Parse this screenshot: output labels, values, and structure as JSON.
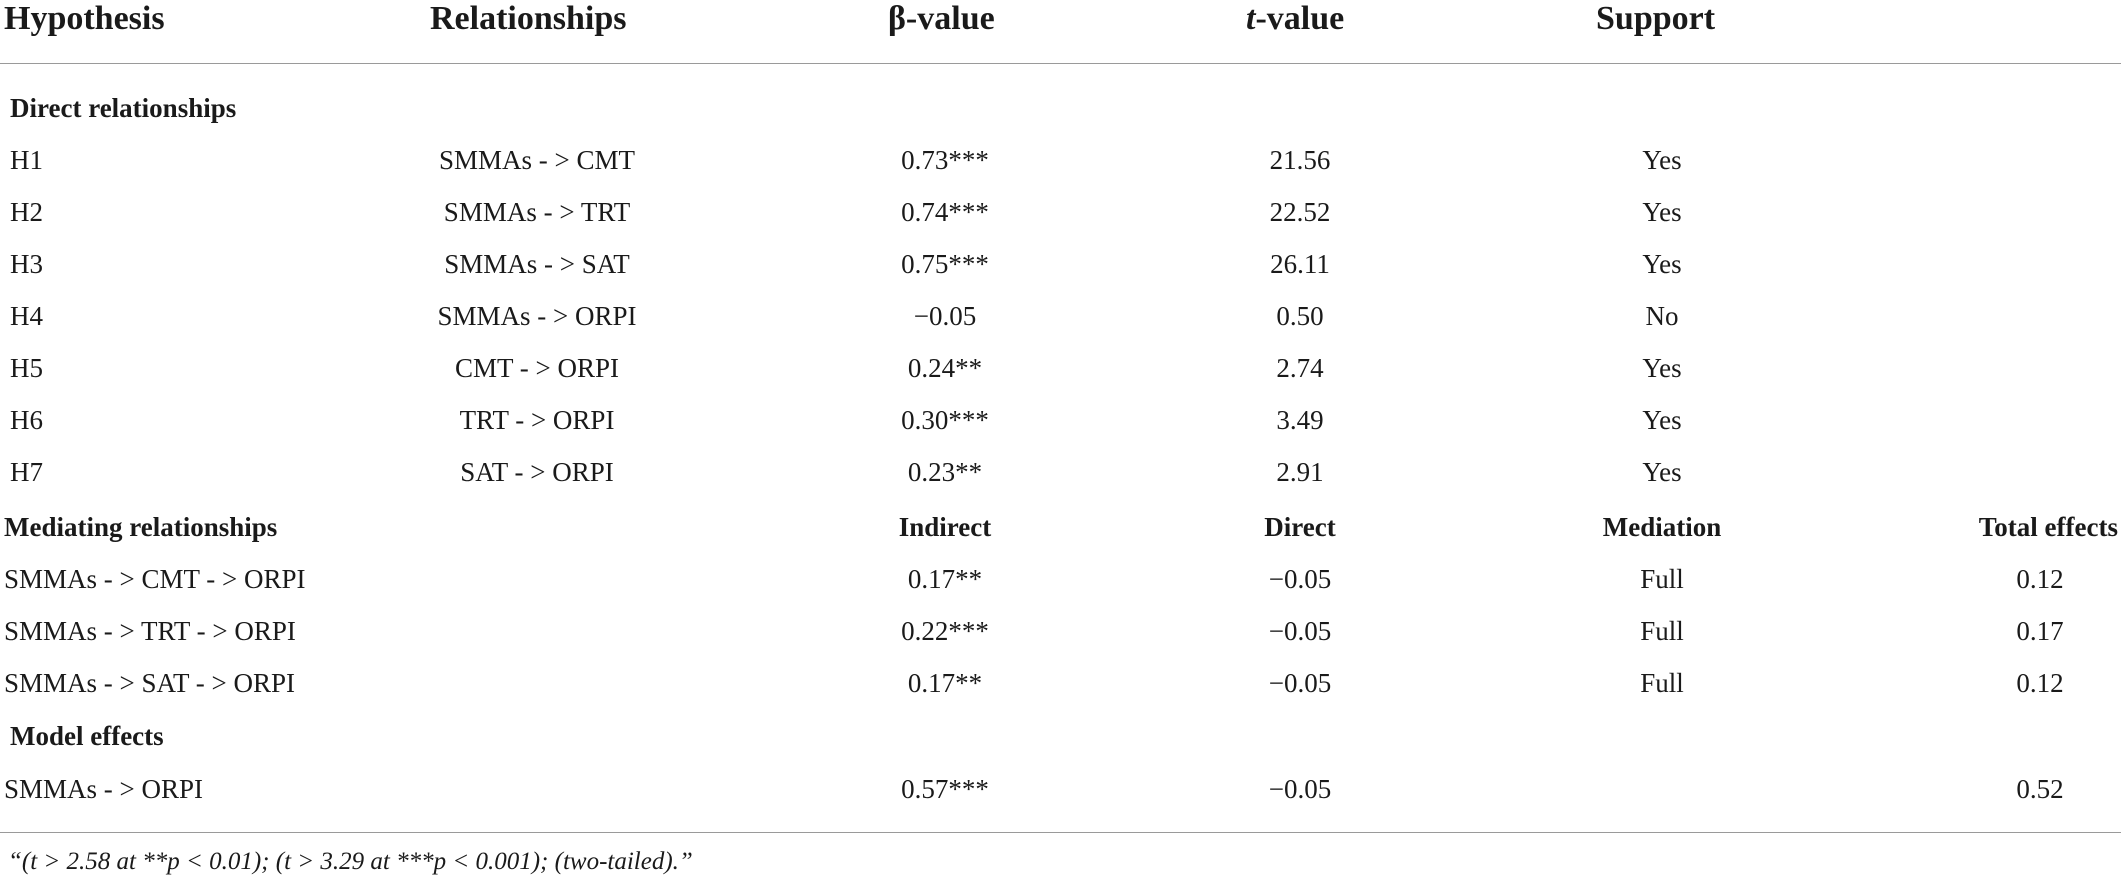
{
  "headers": {
    "hypothesis": "Hypothesis",
    "relationships": "Relationships",
    "beta_symbol": "β",
    "beta_suffix": "-value",
    "t_symbol": "t",
    "t_suffix": "-value",
    "support": "Support"
  },
  "direct": {
    "title": "Direct relationships",
    "rows": [
      {
        "hyp": "H1",
        "rel": "SMMAs - > CMT",
        "beta": "0.73***",
        "t": "21.56",
        "support": "Yes"
      },
      {
        "hyp": "H2",
        "rel": "SMMAs - > TRT",
        "beta": "0.74***",
        "t": "22.52",
        "support": "Yes"
      },
      {
        "hyp": "H3",
        "rel": "SMMAs - > SAT",
        "beta": "0.75***",
        "t": "26.11",
        "support": "Yes"
      },
      {
        "hyp": "H4",
        "rel": "SMMAs - > ORPI",
        "beta": "−0.05",
        "t": "0.50",
        "support": "No"
      },
      {
        "hyp": "H5",
        "rel": "CMT - > ORPI",
        "beta": "0.24**",
        "t": "2.74",
        "support": "Yes"
      },
      {
        "hyp": "H6",
        "rel": "TRT - > ORPI",
        "beta": "0.30***",
        "t": "3.49",
        "support": "Yes"
      },
      {
        "hyp": "H7",
        "rel": "SAT - > ORPI",
        "beta": "0.23**",
        "t": "2.91",
        "support": "Yes"
      }
    ]
  },
  "mediating": {
    "title": "Mediating relationships",
    "col_indirect": "Indirect",
    "col_direct": "Direct",
    "col_mediation": "Mediation",
    "col_total": "Total effects",
    "rows": [
      {
        "path": "SMMAs - > CMT - > ORPI",
        "indirect": "0.17**",
        "direct": "−0.05",
        "mediation": "Full",
        "total": "0.12"
      },
      {
        "path": "SMMAs - > TRT - > ORPI",
        "indirect": "0.22***",
        "direct": "−0.05",
        "mediation": "Full",
        "total": "0.17"
      },
      {
        "path": "SMMAs - > SAT - > ORPI",
        "indirect": "0.17**",
        "direct": "−0.05",
        "mediation": "Full",
        "total": "0.12"
      }
    ]
  },
  "model": {
    "title": "Model effects",
    "path": "SMMAs - > ORPI",
    "indirect": "0.57***",
    "direct": "−0.05",
    "total": "0.52"
  },
  "footnote": "“(t > 2.58 at **p < 0.01); (t > 3.29 at ***p < 0.001); (two-tailed).”"
}
